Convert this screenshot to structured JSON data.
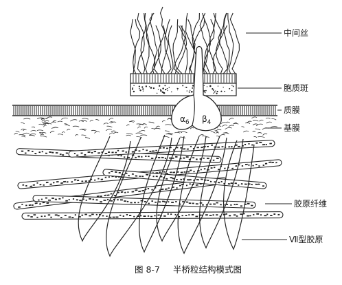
{
  "labels": {
    "intermediate_filaments": "中间丝",
    "plaque": "胞质斑",
    "plasma_membrane": "质膜",
    "basement_membrane": "基膜",
    "collagen_fibers": "胶原纤维",
    "type7_collagen": "Ⅶ型胶原"
  },
  "integrins": {
    "alpha": "α",
    "alpha_sub": "6",
    "beta": "β",
    "beta_sub": "4"
  },
  "caption": {
    "figure_number": "图 8-7",
    "title": "半桥粒结构模式图"
  }
}
